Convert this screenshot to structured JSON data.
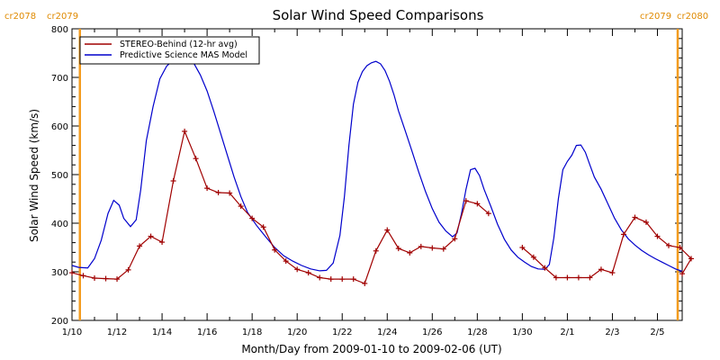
{
  "chart_data": {
    "type": "line",
    "title": "Solar Wind Speed Comparisons",
    "xlabel": "Month/Day from 2009-01-10 to 2009-02-06 (UT)",
    "ylabel": "Solar Wind Speed (km/s)",
    "xlim": [
      0,
      27.1
    ],
    "ylim": [
      200,
      800
    ],
    "yticks": [
      200,
      300,
      400,
      500,
      600,
      700,
      800
    ],
    "xticks": [
      {
        "x": 0,
        "label": "1/10"
      },
      {
        "x": 2,
        "label": "1/12"
      },
      {
        "x": 4,
        "label": "1/14"
      },
      {
        "x": 6,
        "label": "1/16"
      },
      {
        "x": 8,
        "label": "1/18"
      },
      {
        "x": 10,
        "label": "1/20"
      },
      {
        "x": 12,
        "label": "1/22"
      },
      {
        "x": 14,
        "label": "1/24"
      },
      {
        "x": 16,
        "label": "1/26"
      },
      {
        "x": 18,
        "label": "1/28"
      },
      {
        "x": 20,
        "label": "1/30"
      },
      {
        "x": 22,
        "label": "2/1"
      },
      {
        "x": 24,
        "label": "2/3"
      },
      {
        "x": 26,
        "label": "2/5"
      }
    ],
    "carrington_markers": [
      {
        "x": 0.35,
        "label_left": "cr2078",
        "label_right": "cr2079"
      },
      {
        "x": 26.9,
        "label_left": "cr2079",
        "label_right": "cr2080"
      }
    ],
    "marker_color": "#f39c1f",
    "series": [
      {
        "name": "STEREO-Behind (12-hr avg)",
        "color": "#a00000",
        "marker": "plus",
        "segments": [
          [
            [
              0,
              298
            ],
            [
              0.5,
              292
            ],
            [
              1,
              287
            ],
            [
              1.5,
              286
            ],
            [
              2,
              285
            ],
            [
              2.5,
              304
            ],
            [
              3,
              353
            ],
            [
              3.5,
              373
            ],
            [
              4,
              361
            ],
            [
              4.5,
              487
            ],
            [
              5,
              589
            ],
            [
              5.5,
              533
            ],
            [
              6,
              472
            ],
            [
              6.5,
              463
            ],
            [
              7,
              462
            ],
            [
              7.5,
              435
            ],
            [
              8,
              410
            ],
            [
              8.5,
              392
            ],
            [
              9,
              345
            ],
            [
              9.5,
              322
            ],
            [
              10,
              305
            ],
            [
              10.5,
              298
            ],
            [
              11,
              288
            ],
            [
              11.5,
              285
            ],
            [
              12,
              285
            ],
            [
              12.5,
              285
            ],
            [
              13,
              276
            ],
            [
              13.5,
              343
            ],
            [
              14,
              386
            ],
            [
              14.5,
              348
            ],
            [
              15,
              339
            ],
            [
              15.5,
              352
            ],
            [
              16,
              349
            ],
            [
              16.5,
              347
            ],
            [
              17,
              368
            ],
            [
              17.5,
              446
            ],
            [
              18,
              440
            ],
            [
              18.5,
              420
            ]
          ],
          [
            [
              20,
              350
            ],
            [
              20.5,
              330
            ],
            [
              21,
              308
            ],
            [
              21.5,
              288
            ],
            [
              22,
              288
            ],
            [
              22.5,
              288
            ],
            [
              23,
              288
            ],
            [
              23.5,
              305
            ],
            [
              24,
              298
            ],
            [
              24.5,
              377
            ],
            [
              25,
              412
            ],
            [
              25.5,
              402
            ],
            [
              26,
              373
            ],
            [
              26.5,
              354
            ],
            [
              27,
              350
            ],
            [
              27.5,
              327
            ],
            [
              27.1,
              296
            ]
          ]
        ]
      },
      {
        "name": "Predictive Science MAS Model",
        "color": "#0000cc",
        "segments": [
          [
            [
              0,
              313
            ],
            [
              0.3,
              309
            ],
            [
              0.7,
              308
            ],
            [
              1,
              327
            ],
            [
              1.3,
              365
            ],
            [
              1.6,
              420
            ],
            [
              1.85,
              447
            ],
            [
              2.1,
              437
            ],
            [
              2.3,
              410
            ],
            [
              2.6,
              393
            ],
            [
              2.85,
              407
            ],
            [
              3.05,
              468
            ],
            [
              3.3,
              570
            ],
            [
              3.6,
              640
            ],
            [
              3.9,
              697
            ],
            [
              4.2,
              723
            ],
            [
              4.5,
              736
            ],
            [
              4.8,
              740
            ],
            [
              5.1,
              740
            ],
            [
              5.4,
              730
            ],
            [
              5.7,
              705
            ],
            [
              6,
              672
            ],
            [
              6.3,
              630
            ],
            [
              6.6,
              585
            ],
            [
              6.9,
              540
            ],
            [
              7.2,
              495
            ],
            [
              7.5,
              455
            ],
            [
              7.8,
              422
            ],
            [
              8.2,
              395
            ],
            [
              8.6,
              372
            ],
            [
              9,
              350
            ],
            [
              9.4,
              333
            ],
            [
              9.8,
              322
            ],
            [
              10.2,
              313
            ],
            [
              10.6,
              306
            ],
            [
              11,
              302
            ],
            [
              11.3,
              303
            ],
            [
              11.6,
              318
            ],
            [
              11.9,
              375
            ],
            [
              12.1,
              455
            ],
            [
              12.3,
              560
            ],
            [
              12.5,
              645
            ],
            [
              12.7,
              690
            ],
            [
              12.9,
              712
            ],
            [
              13.1,
              724
            ],
            [
              13.3,
              730
            ],
            [
              13.5,
              733
            ],
            [
              13.7,
              728
            ],
            [
              13.9,
              714
            ],
            [
              14.1,
              692
            ],
            [
              14.3,
              664
            ],
            [
              14.5,
              631
            ],
            [
              14.8,
              590
            ],
            [
              15.1,
              548
            ],
            [
              15.4,
              505
            ],
            [
              15.7,
              465
            ],
            [
              16,
              430
            ],
            [
              16.3,
              402
            ],
            [
              16.6,
              384
            ],
            [
              16.9,
              372
            ],
            [
              17.1,
              380
            ],
            [
              17.3,
              420
            ],
            [
              17.5,
              470
            ],
            [
              17.7,
              510
            ],
            [
              17.9,
              513
            ],
            [
              18.1,
              498
            ],
            [
              18.3,
              470
            ],
            [
              18.6,
              435
            ],
            [
              18.9,
              398
            ],
            [
              19.2,
              367
            ],
            [
              19.5,
              345
            ],
            [
              19.8,
              330
            ],
            [
              20.1,
              320
            ],
            [
              20.4,
              311
            ],
            [
              20.7,
              306
            ],
            [
              21,
              305
            ],
            [
              21.2,
              315
            ],
            [
              21.4,
              370
            ],
            [
              21.6,
              450
            ],
            [
              21.8,
              510
            ],
            [
              22,
              527
            ],
            [
              22.2,
              540
            ],
            [
              22.4,
              560
            ],
            [
              22.6,
              561
            ],
            [
              22.8,
              546
            ],
            [
              23,
              520
            ],
            [
              23.2,
              495
            ],
            [
              23.5,
              470
            ],
            [
              23.8,
              440
            ],
            [
              24.1,
              410
            ],
            [
              24.4,
              386
            ],
            [
              24.7,
              368
            ],
            [
              25,
              355
            ],
            [
              25.3,
              344
            ],
            [
              25.6,
              335
            ],
            [
              25.9,
              327
            ],
            [
              26.2,
              320
            ],
            [
              26.5,
              313
            ],
            [
              26.8,
              306
            ],
            [
              27.1,
              301
            ]
          ]
        ]
      }
    ]
  }
}
